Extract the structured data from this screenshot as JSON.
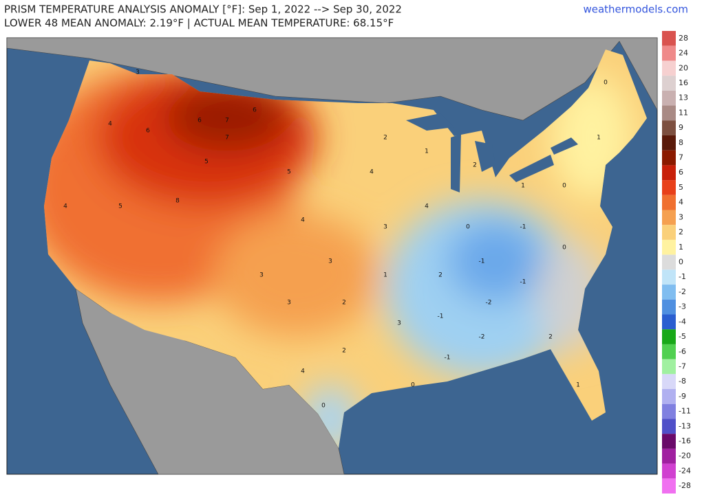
{
  "header": {
    "title": "PRISM TEMPERATURE ANALYSIS ANOMALY [°F]: Sep 1, 2022 --> Sep 30, 2022",
    "subtitle": "LOWER 48 MEAN ANOMALY: 2.19°F | ACTUAL MEAN TEMPERATURE: 68.15°F",
    "site": "weathermodels.com"
  },
  "colorbar": {
    "labels": [
      "28",
      "24",
      "20",
      "16",
      "13",
      "11",
      "9",
      "8",
      "7",
      "6",
      "5",
      "4",
      "3",
      "2",
      "1",
      "0",
      "-1",
      "-2",
      "-3",
      "-4",
      "-5",
      "-6",
      "-7",
      "-8",
      "-9",
      "-11",
      "-13",
      "-16",
      "-20",
      "-24",
      "-28"
    ],
    "colors": [
      "#d9534f",
      "#ef8a8a",
      "#f6d0d0",
      "#ddd0d0",
      "#c9b0b0",
      "#a98a85",
      "#7d5040",
      "#5a1a0a",
      "#8b1a00",
      "#c8200a",
      "#e8401a",
      "#f07030",
      "#f5a050",
      "#fad07a",
      "#fff2a0",
      "#dcdcdc",
      "#c0e4f8",
      "#80bdf0",
      "#4f8fe0",
      "#2a5ed0",
      "#18a818",
      "#50d050",
      "#a0f0a0",
      "#d8d8f8",
      "#b0b0f0",
      "#8080e0",
      "#5050c8",
      "#6a0a6a",
      "#a020a0",
      "#d040d0",
      "#f070f0"
    ]
  },
  "map_labels": [
    "3",
    "4",
    "6",
    "6",
    "7",
    "5",
    "7",
    "6",
    "4",
    "5",
    "8",
    "5",
    "4",
    "3",
    "2",
    "3",
    "4",
    "3",
    "4",
    "2",
    "1",
    "2",
    "1",
    "0",
    "-1",
    "-1",
    "0",
    "-2",
    "-1",
    "-2",
    "-1",
    "0",
    "1",
    "2",
    "0",
    "1",
    "0",
    "2",
    "3",
    "1",
    "-1",
    "0",
    "2",
    "3",
    "4"
  ]
}
